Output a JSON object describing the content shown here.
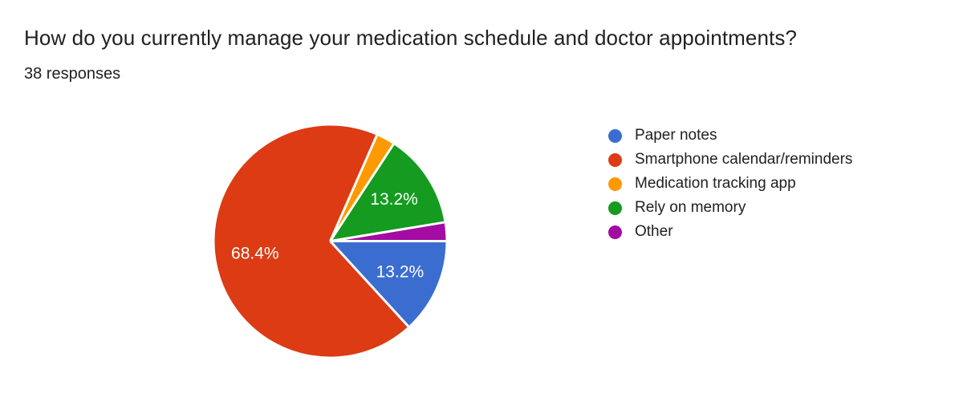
{
  "header": {
    "title": "How do you currently manage your medication schedule and doctor appointments?",
    "subtitle": "38 responses"
  },
  "chart_data": {
    "type": "pie",
    "title": "How do you currently manage your medication schedule and doctor appointments?",
    "subtitle": "38 responses",
    "legend_position": "right",
    "start_angle_deg_from_top_clockwise": 90,
    "direction": "clockwise",
    "separator_color": "#ffffff",
    "label_color": "#ffffff",
    "slices": [
      {
        "label": "Paper notes",
        "pct": 13.2,
        "data_label": "13.2%",
        "show_data_label": true,
        "color": "#3B6DD1"
      },
      {
        "label": "Smartphone calendar/reminders",
        "pct": 68.4,
        "data_label": "68.4%",
        "show_data_label": true,
        "color": "#DC3B13"
      },
      {
        "label": "Medication tracking app",
        "pct": 2.6,
        "data_label": "",
        "show_data_label": false,
        "color": "#FF9900"
      },
      {
        "label": "Rely on memory",
        "pct": 13.2,
        "data_label": "13.2%",
        "show_data_label": true,
        "color": "#149B20"
      },
      {
        "label": "Other",
        "pct": 2.6,
        "data_label": "",
        "show_data_label": false,
        "color": "#A30BA3"
      }
    ]
  }
}
